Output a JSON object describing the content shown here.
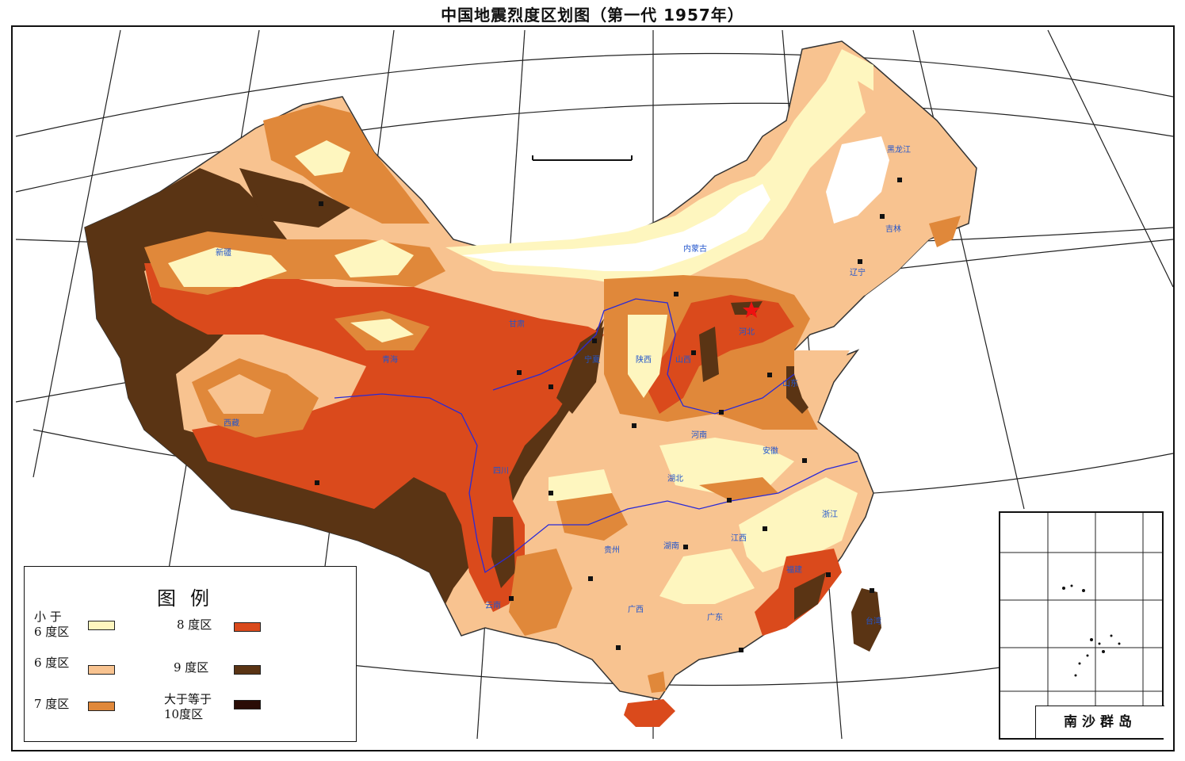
{
  "title": "中国地震烈度区划图（第一代 1957年）",
  "colors": {
    "below6": "#fef6bf",
    "deg6": "#f8c390",
    "deg7": "#e0883a",
    "deg8": "#da4a1c",
    "deg9": "#5a3414",
    "deg10": "#2a0c06",
    "river": "#2a2ad6",
    "graticule": "#222222"
  },
  "legend": {
    "title": "图例",
    "items": [
      {
        "label": "小 于\n6 度区",
        "color": "#fef6bf"
      },
      {
        "label": "6 度区",
        "color": "#f8c390"
      },
      {
        "label": "7 度区",
        "color": "#e0883a"
      },
      {
        "label": "8 度区",
        "color": "#da4a1c"
      },
      {
        "label": "9 度区",
        "color": "#5a3414"
      },
      {
        "label": "大于等于\n10度区",
        "color": "#2a0c06"
      }
    ]
  },
  "inset": {
    "label": "南沙群岛"
  },
  "place_labels": [
    "内蒙古",
    "黑龙江",
    "吉林",
    "辽宁",
    "宁夏",
    "陕西",
    "山西",
    "河北",
    "山东",
    "河南",
    "安徽",
    "湖北",
    "四川",
    "湖南",
    "江西",
    "浙江",
    "福建",
    "广东",
    "广西",
    "云南",
    "贵州",
    "台湾",
    "新疆",
    "西藏",
    "青海",
    "甘肃"
  ],
  "map_icons": [
    "capital-star-icon",
    "city-marker-icon",
    "scale-bar-icon"
  ]
}
